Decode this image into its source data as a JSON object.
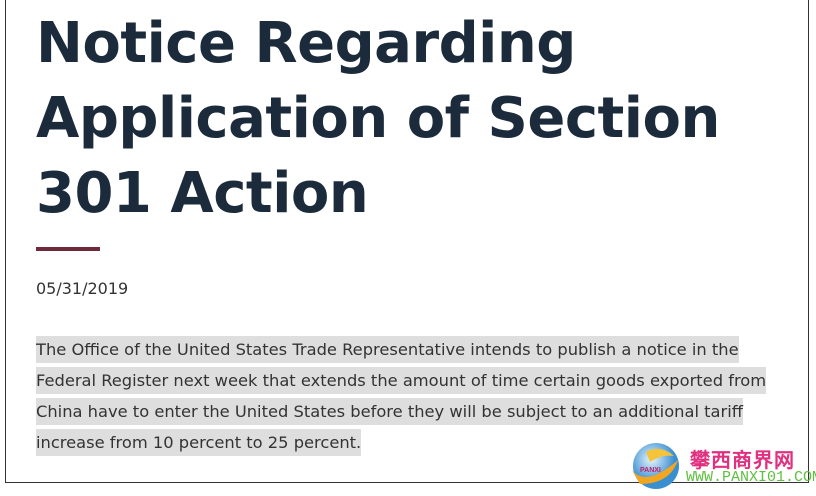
{
  "title": "Notice Regarding Application of Section 301 Action",
  "date": "05/31/2019",
  "body": "The Office of the United States Trade Representative intends to publish a notice in the Federal Register next week that extends the amount of time certain goods exported from China have to enter the United States before they will be subject to an additional tariff increase from 10 percent to 25 percent.",
  "colors": {
    "title": "#1c2b3b",
    "rule": "#6e2a3a",
    "highlight": "#dedede"
  },
  "watermark": {
    "logo_text": "PANXI",
    "name": "攀西商界网",
    "url": "WWW.PANXI01.COM"
  }
}
